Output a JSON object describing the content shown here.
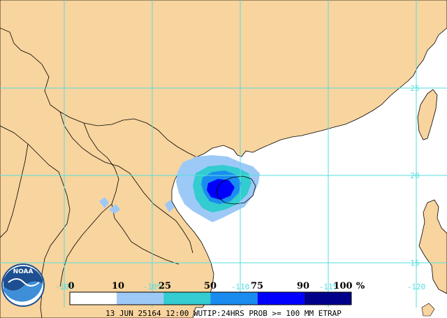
{
  "product": {
    "caption": "13 JUN 25164 12:00 WUTIP:24HRS PROB >= 100 MM ETRAP"
  },
  "logo": {
    "text": "NOAA"
  },
  "colors": {
    "land": "#f8d49e",
    "ocean": "#ffffff",
    "gridline": "#55dede",
    "border": "#000000",
    "prob_10_25": "#9dc9f7",
    "prob_25_50": "#33ccd0",
    "prob_50_75": "#1a8cf0",
    "prob_75_90": "#0000ff",
    "prob_90_100": "#00008b"
  },
  "grid": {
    "latitudes": [
      "25",
      "20",
      "15"
    ],
    "longitudes": [
      "-100",
      "-105",
      "-110",
      "-115",
      "-120"
    ]
  },
  "legend": {
    "values": [
      "0",
      "10",
      "25",
      "50",
      "75",
      "90",
      "100"
    ],
    "unit": "%",
    "bins": [
      {
        "range": "0-10",
        "color": "#ffffff"
      },
      {
        "range": "10-25",
        "color": "#9dc9f7"
      },
      {
        "range": "25-50",
        "color": "#33ccd0"
      },
      {
        "range": "50-75",
        "color": "#1a8cf0"
      },
      {
        "range": "75-90",
        "color": "#0000ff"
      },
      {
        "range": "90-100",
        "color": "#00008b"
      }
    ]
  }
}
